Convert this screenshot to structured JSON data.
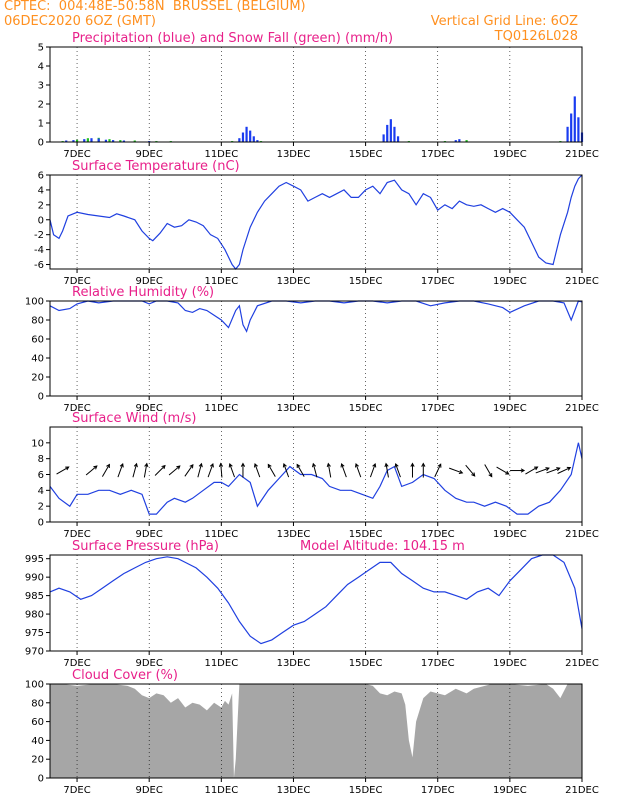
{
  "header": {
    "line1_left": "CPTEC:  004:48E-50:58N  BRUSSEL (BELGIUM)",
    "line2_left": "06DEC2020 6OZ (GMT)",
    "line2_right": "Vertical Grid Line: 6OZ",
    "line3_right": "TQ0126L028"
  },
  "colors": {
    "header": "#ff9020",
    "title": "#e8208a",
    "line": "#2040e0",
    "precip": "#1a3cf0",
    "snow": "#20c020",
    "cloud": "#a6a6a6"
  },
  "x_axis": {
    "day_min": 6.25,
    "day_max": 21.0,
    "tick_labels": [
      "7DEC",
      "9DEC",
      "11DEC",
      "13DEC",
      "15DEC",
      "17DEC",
      "19DEC",
      "21DEC"
    ],
    "tick_days": [
      7,
      9,
      11,
      13,
      15,
      17,
      19,
      21
    ]
  },
  "chart_data": [
    {
      "type": "bar",
      "title": "Precipitation (blue) and Snow Fall (green) (mm/h)",
      "ylim": [
        0,
        5
      ],
      "yticks": [
        0,
        1,
        2,
        3,
        4,
        5
      ],
      "precip": [
        [
          6.7,
          0.08
        ],
        [
          6.9,
          0.1
        ],
        [
          7.2,
          0.15
        ],
        [
          7.4,
          0.2
        ],
        [
          7.6,
          0.18
        ],
        [
          7.8,
          0.12
        ],
        [
          8.0,
          0.1
        ],
        [
          8.3,
          0.08
        ],
        [
          9.0,
          0.05
        ],
        [
          11.5,
          0.2
        ],
        [
          11.6,
          0.5
        ],
        [
          11.7,
          0.8
        ],
        [
          11.8,
          0.6
        ],
        [
          11.9,
          0.3
        ],
        [
          12.0,
          0.1
        ],
        [
          15.5,
          0.4
        ],
        [
          15.6,
          0.9
        ],
        [
          15.7,
          1.2
        ],
        [
          15.8,
          0.8
        ],
        [
          15.9,
          0.3
        ],
        [
          17.5,
          0.1
        ],
        [
          17.6,
          0.15
        ],
        [
          20.6,
          0.8
        ],
        [
          20.7,
          1.5
        ],
        [
          20.8,
          2.4
        ],
        [
          20.9,
          1.3
        ],
        [
          21.0,
          0.5
        ]
      ],
      "snow": [
        [
          6.6,
          0.05
        ],
        [
          7.0,
          0.12
        ],
        [
          7.3,
          0.2
        ],
        [
          7.6,
          0.22
        ],
        [
          7.9,
          0.15
        ],
        [
          8.2,
          0.1
        ],
        [
          8.6,
          0.08
        ],
        [
          9.2,
          0.05
        ],
        [
          9.6,
          0.05
        ],
        [
          11.3,
          0.05
        ],
        [
          12.1,
          0.05
        ],
        [
          13.0,
          0.03
        ],
        [
          16.2,
          0.05
        ],
        [
          17.2,
          0.05
        ],
        [
          17.8,
          0.1
        ],
        [
          20.4,
          0.05
        ]
      ]
    },
    {
      "type": "line",
      "title": "Surface Temperature (nC)",
      "ylim": [
        -6.6,
        6
      ],
      "yticks": [
        -6,
        -4,
        -2,
        0,
        2,
        4,
        6
      ],
      "x": [
        6.25,
        6.35,
        6.5,
        6.6,
        6.75,
        7.0,
        7.3,
        7.6,
        7.9,
        8.1,
        8.3,
        8.6,
        8.8,
        9.0,
        9.1,
        9.3,
        9.5,
        9.7,
        9.9,
        10.1,
        10.3,
        10.5,
        10.7,
        10.9,
        11.1,
        11.3,
        11.4,
        11.5,
        11.6,
        11.8,
        12.0,
        12.2,
        12.4,
        12.6,
        12.8,
        13.0,
        13.2,
        13.4,
        13.6,
        13.8,
        14.0,
        14.2,
        14.4,
        14.6,
        14.8,
        15.0,
        15.2,
        15.4,
        15.6,
        15.8,
        16.0,
        16.2,
        16.4,
        16.6,
        16.8,
        17.0,
        17.2,
        17.4,
        17.6,
        17.8,
        18.0,
        18.2,
        18.4,
        18.6,
        18.8,
        19.0,
        19.2,
        19.4,
        19.6,
        19.8,
        20.0,
        20.2,
        20.4,
        20.6,
        20.7,
        20.8,
        20.9,
        21.0
      ],
      "y": [
        0,
        -2,
        -2.5,
        -1.5,
        0.5,
        1,
        0.7,
        0.5,
        0.3,
        0.8,
        0.5,
        0,
        -1.5,
        -2.5,
        -2.8,
        -1.8,
        -0.5,
        -1,
        -0.8,
        0,
        -0.3,
        -0.8,
        -2,
        -2.5,
        -4,
        -6,
        -6.6,
        -6,
        -4,
        -1,
        1,
        2.5,
        3.5,
        4.5,
        5,
        4.5,
        4,
        2.5,
        3,
        3.5,
        3,
        3.5,
        4,
        3,
        3,
        4,
        4.5,
        3.5,
        5,
        5.3,
        4,
        3.5,
        2,
        3.5,
        3,
        1.3,
        2,
        1.5,
        2.5,
        2,
        1.8,
        2,
        1.5,
        1,
        1.5,
        1,
        0,
        -1,
        -3,
        -5,
        -5.8,
        -6,
        -2,
        1,
        3,
        4.5,
        5.5,
        6
      ]
    },
    {
      "type": "line",
      "title": "Relative Humidity (%)",
      "ylim": [
        0,
        100
      ],
      "yticks": [
        0,
        20,
        40,
        60,
        80,
        100
      ],
      "x": [
        6.25,
        6.5,
        6.8,
        7.0,
        7.3,
        7.6,
        8.0,
        8.4,
        8.8,
        9.0,
        9.2,
        9.5,
        9.8,
        10.0,
        10.2,
        10.4,
        10.6,
        10.8,
        11.0,
        11.2,
        11.4,
        11.5,
        11.6,
        11.7,
        11.8,
        12.0,
        12.4,
        12.8,
        13.2,
        13.6,
        14.0,
        14.4,
        14.8,
        15.2,
        15.6,
        16.0,
        16.4,
        16.8,
        17.2,
        17.6,
        18.0,
        18.4,
        18.8,
        19.0,
        19.4,
        19.8,
        20.2,
        20.5,
        20.7,
        20.9,
        21.0
      ],
      "y": [
        95,
        90,
        92,
        97,
        100,
        98,
        100,
        100,
        100,
        97,
        100,
        100,
        98,
        90,
        88,
        92,
        90,
        85,
        80,
        72,
        90,
        95,
        75,
        68,
        80,
        95,
        100,
        100,
        98,
        100,
        100,
        98,
        100,
        100,
        98,
        100,
        100,
        95,
        98,
        100,
        100,
        97,
        93,
        88,
        95,
        100,
        100,
        98,
        80,
        100,
        99
      ]
    },
    {
      "type": "line",
      "title": "Surface Wind (m/s)",
      "ylim": [
        0,
        12
      ],
      "yticks": [
        0,
        2,
        4,
        6,
        8,
        10
      ],
      "x": [
        6.25,
        6.5,
        6.8,
        7.0,
        7.3,
        7.6,
        7.9,
        8.2,
        8.5,
        8.8,
        9.0,
        9.2,
        9.5,
        9.7,
        10.0,
        10.2,
        10.5,
        10.8,
        11.0,
        11.2,
        11.5,
        11.8,
        12.0,
        12.3,
        12.6,
        12.9,
        13.2,
        13.5,
        13.8,
        14.0,
        14.3,
        14.6,
        14.9,
        15.2,
        15.4,
        15.6,
        15.8,
        16.0,
        16.3,
        16.6,
        16.9,
        17.2,
        17.5,
        17.8,
        18.0,
        18.3,
        18.6,
        18.9,
        19.2,
        19.5,
        19.8,
        20.1,
        20.4,
        20.7,
        20.9,
        21.0
      ],
      "y": [
        4.5,
        3,
        2,
        3.5,
        3.5,
        4,
        4,
        3.5,
        4,
        3.5,
        1,
        1,
        2.5,
        3,
        2.5,
        3,
        4,
        5,
        5,
        4.5,
        6,
        5,
        2,
        4,
        5.5,
        7,
        6,
        6,
        5.5,
        4.5,
        4,
        4,
        3.5,
        3,
        4.5,
        6.5,
        7,
        4.5,
        5,
        6,
        5.5,
        4,
        3,
        2.5,
        2.5,
        2,
        2.5,
        2,
        1,
        1,
        2,
        2.5,
        4,
        6,
        10,
        8
      ]
    },
    {
      "type": "line",
      "title": "Surface Pressure (hPa)",
      "annotation": "Model Altitude: 104.15 m",
      "ylim": [
        970,
        996
      ],
      "yticks": [
        970,
        975,
        980,
        985,
        990,
        995
      ],
      "x": [
        6.25,
        6.5,
        6.8,
        7.1,
        7.4,
        7.7,
        8.0,
        8.3,
        8.6,
        8.9,
        9.2,
        9.5,
        9.8,
        10.0,
        10.3,
        10.6,
        10.9,
        11.2,
        11.5,
        11.8,
        12.1,
        12.4,
        12.7,
        13.0,
        13.3,
        13.6,
        13.9,
        14.2,
        14.5,
        14.8,
        15.1,
        15.4,
        15.7,
        16.0,
        16.3,
        16.6,
        16.9,
        17.2,
        17.5,
        17.8,
        18.1,
        18.4,
        18.7,
        19.0,
        19.3,
        19.6,
        19.9,
        20.2,
        20.5,
        20.8,
        21.0
      ],
      "y": [
        986,
        987,
        986,
        984,
        985,
        987,
        989,
        991,
        992.5,
        994,
        995,
        995.5,
        995,
        994,
        992.5,
        990,
        987,
        983,
        978,
        974,
        972,
        973,
        975,
        977,
        978,
        980,
        982,
        985,
        988,
        990,
        992,
        994,
        994,
        991,
        989,
        987,
        986,
        986,
        985,
        984,
        986,
        987,
        985,
        989,
        992,
        995,
        996,
        996,
        994,
        987,
        976
      ]
    },
    {
      "type": "area",
      "title": "Cloud Cover (%)",
      "ylim": [
        0,
        100
      ],
      "yticks": [
        0,
        20,
        40,
        60,
        80,
        100
      ],
      "x": [
        6.25,
        6.6,
        7.0,
        7.5,
        8.0,
        8.4,
        8.6,
        8.8,
        9.0,
        9.2,
        9.4,
        9.6,
        9.8,
        10.0,
        10.2,
        10.4,
        10.6,
        10.8,
        11.0,
        11.1,
        11.2,
        11.3,
        11.35,
        11.4,
        11.45,
        11.5,
        11.8,
        12.5,
        13.5,
        14.5,
        15.0,
        15.2,
        15.4,
        15.6,
        15.8,
        16.0,
        16.1,
        16.2,
        16.3,
        16.4,
        16.6,
        16.8,
        17.0,
        17.2,
        17.5,
        17.8,
        18.0,
        18.5,
        19.0,
        19.5,
        20.0,
        20.2,
        20.4,
        20.6,
        21.0
      ],
      "y": [
        100,
        100,
        98,
        100,
        100,
        98,
        95,
        88,
        85,
        90,
        88,
        80,
        85,
        75,
        80,
        78,
        72,
        80,
        75,
        82,
        78,
        90,
        0,
        20,
        60,
        100,
        100,
        100,
        100,
        100,
        100,
        98,
        90,
        88,
        92,
        90,
        78,
        40,
        22,
        60,
        85,
        92,
        90,
        88,
        95,
        90,
        95,
        100,
        100,
        98,
        100,
        95,
        85,
        100,
        100
      ]
    }
  ],
  "wind_arrows": [
    [
      6.6,
      240
    ],
    [
      7.4,
      230
    ],
    [
      7.8,
      210
    ],
    [
      8.2,
      200
    ],
    [
      8.6,
      195
    ],
    [
      8.9,
      190
    ],
    [
      9.3,
      225
    ],
    [
      9.7,
      230
    ],
    [
      10.1,
      215
    ],
    [
      10.4,
      195
    ],
    [
      10.7,
      200
    ],
    [
      11.0,
      175
    ],
    [
      11.3,
      160
    ],
    [
      11.6,
      180
    ],
    [
      12.0,
      160
    ],
    [
      12.4,
      150
    ],
    [
      12.8,
      160
    ],
    [
      13.2,
      150
    ],
    [
      13.6,
      165
    ],
    [
      14.0,
      170
    ],
    [
      14.4,
      160
    ],
    [
      14.8,
      160
    ],
    [
      15.2,
      200
    ],
    [
      15.6,
      170
    ],
    [
      15.9,
      160
    ],
    [
      16.3,
      180
    ],
    [
      16.6,
      180
    ],
    [
      17.0,
      205
    ],
    [
      17.5,
      290
    ],
    [
      17.9,
      320
    ],
    [
      18.4,
      330
    ],
    [
      18.8,
      300
    ],
    [
      19.2,
      270
    ],
    [
      19.6,
      240
    ],
    [
      19.9,
      250
    ],
    [
      20.2,
      250
    ],
    [
      20.5,
      245
    ]
  ]
}
